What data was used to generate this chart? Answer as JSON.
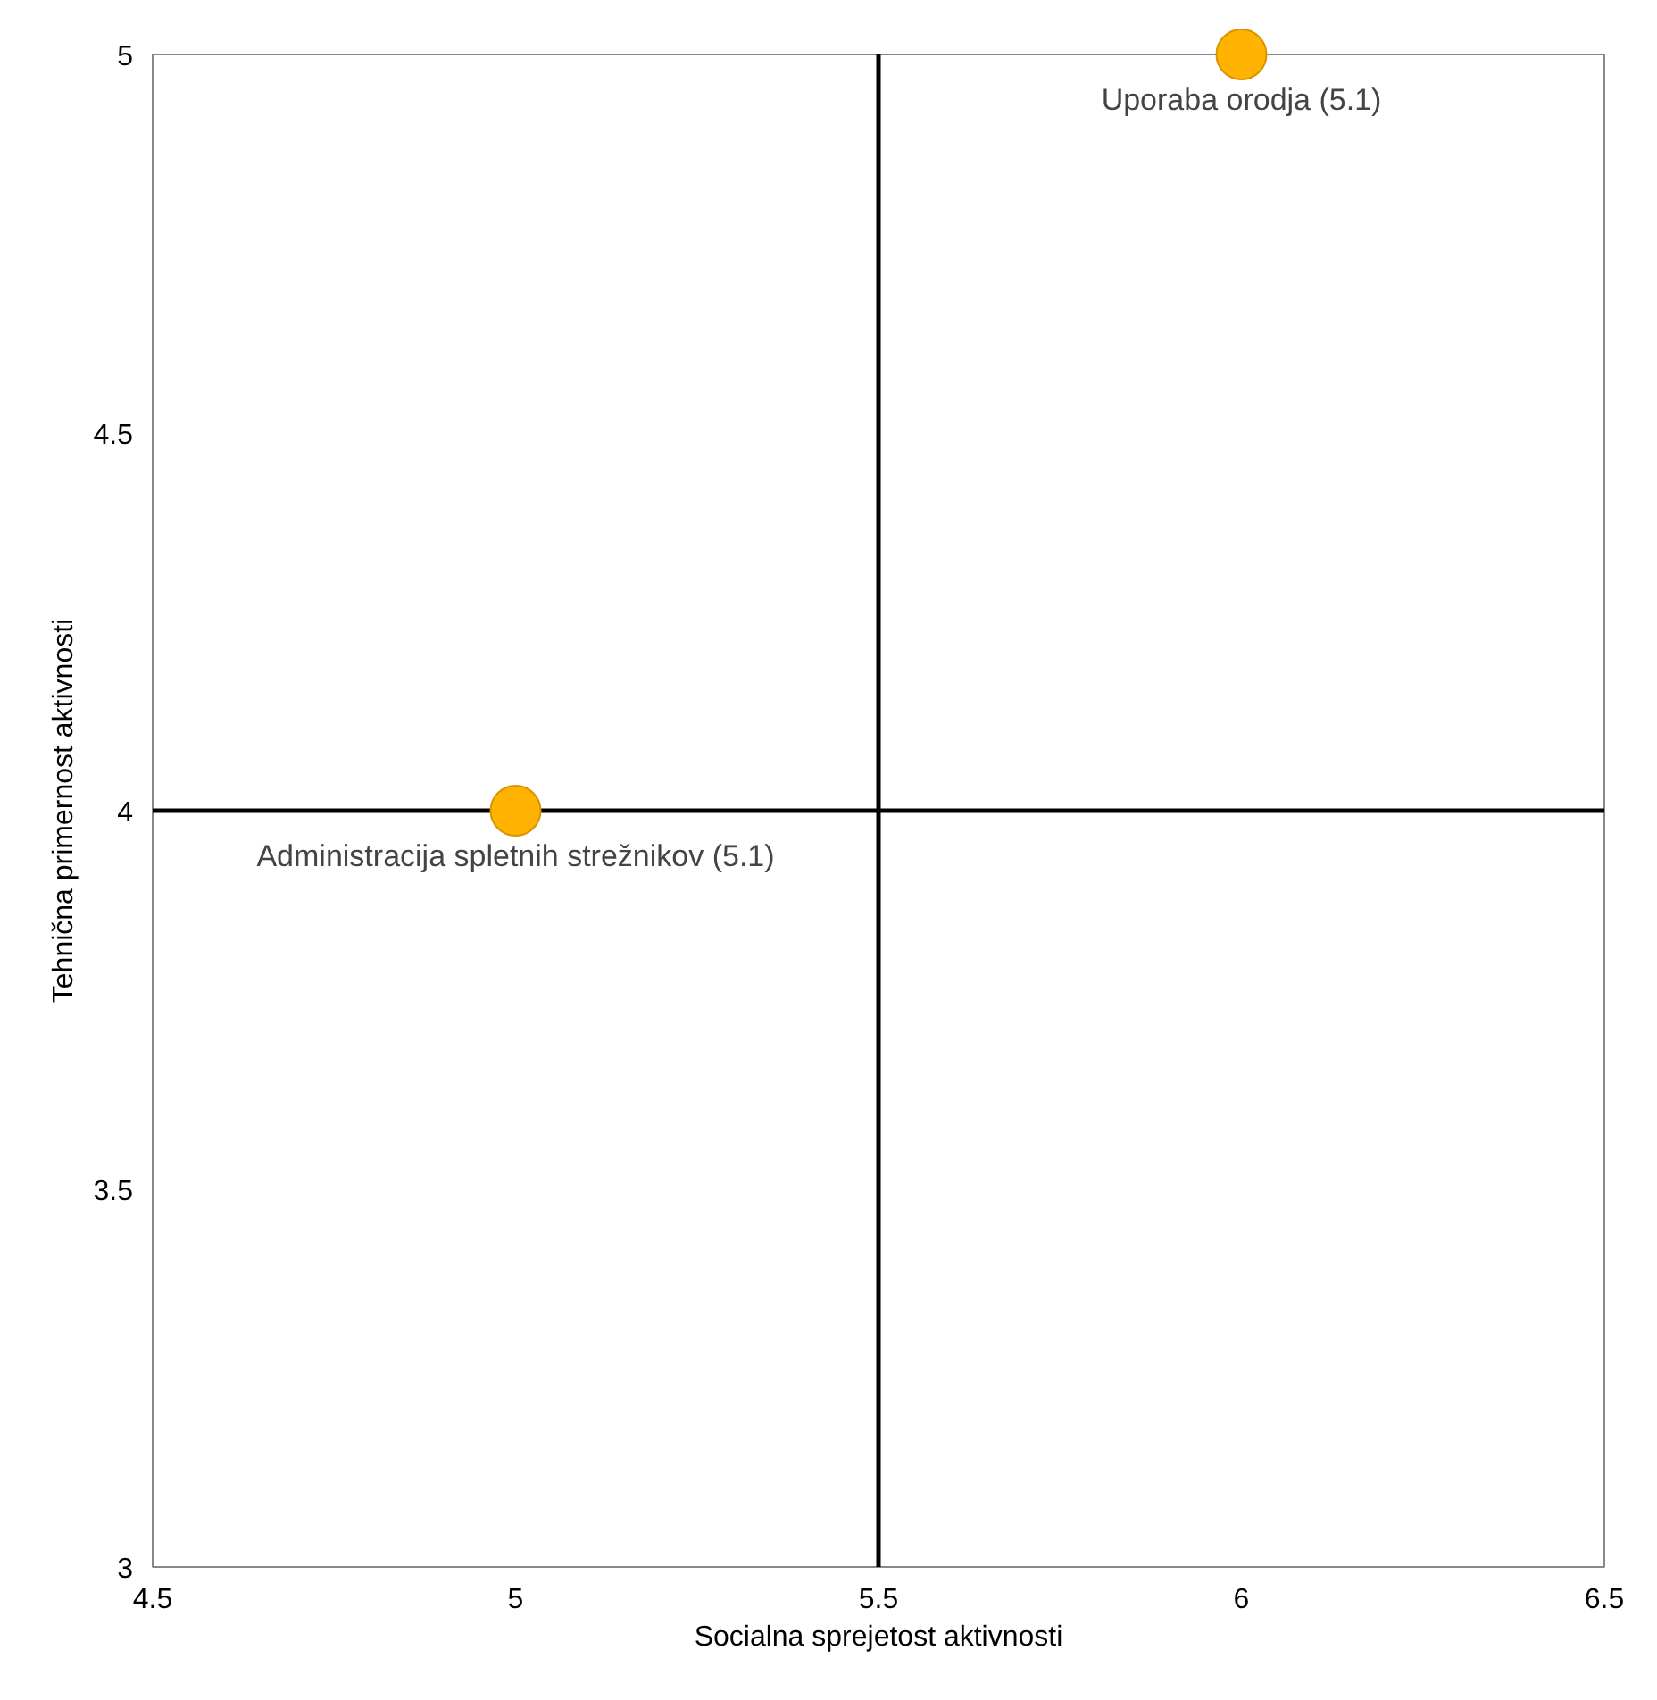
{
  "chart_data": {
    "type": "scatter",
    "xlabel": "Socialna sprejetost aktivnosti",
    "ylabel": "Tehnična primernost aktivnosti",
    "x": [
      5,
      6
    ],
    "series": [
      {
        "color": "#ffb300",
        "values": [
          4,
          5
        ]
      }
    ],
    "xlim": [
      4.5,
      6.5
    ],
    "ylim": [
      3,
      5
    ],
    "xticks": [
      4.5,
      5,
      5.5,
      6,
      6.5
    ],
    "yticks": [
      3,
      3.5,
      4,
      4.5,
      5
    ],
    "ref_lines": [
      {
        "axis": "x",
        "value": 5.5,
        "color": "#000000"
      },
      {
        "axis": "y",
        "value": 4,
        "color": "#000000"
      }
    ],
    "annotations": [
      {
        "text": "Administracija spletnih strežnikov (5.1)",
        "x": 5,
        "y": 4
      },
      {
        "text": "Uporaba orodja (5.1)",
        "x": 6,
        "y": 5
      }
    ],
    "grid": false,
    "marker": "circle"
  }
}
